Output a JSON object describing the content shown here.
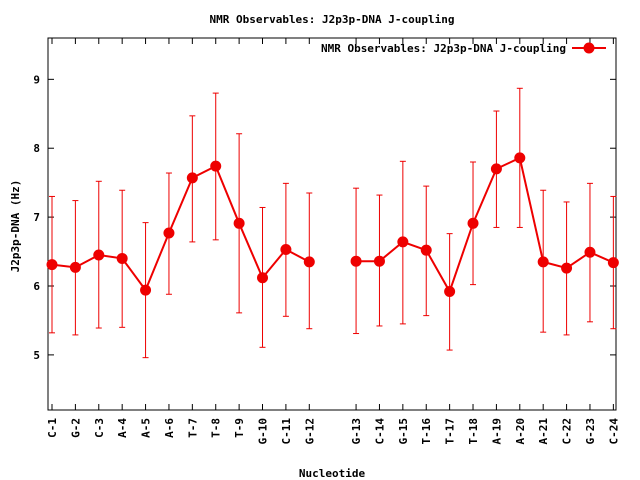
{
  "chart_data": {
    "type": "line",
    "title": "NMR Observables: J2p3p-DNA J-coupling",
    "xlabel": "Nucleotide",
    "ylabel": "J2p3p-DNA (Hz)",
    "ylim": [
      4.2,
      9.6
    ],
    "yticks": [
      5,
      6,
      7,
      8,
      9
    ],
    "grid": false,
    "legend_position": "top-right",
    "colors": {
      "series": "#ee0000",
      "axis": "#000000"
    },
    "series": [
      {
        "name": "NMR Observables: J2p3p-DNA J-coupling",
        "segments": [
          {
            "categories": [
              "C-1",
              "G-2",
              "C-3",
              "A-4",
              "A-5",
              "A-6",
              "T-7",
              "T-8",
              "T-9",
              "G-10",
              "C-11",
              "G-12"
            ],
            "values": [
              6.31,
              6.27,
              6.45,
              6.4,
              5.94,
              6.77,
              7.57,
              7.74,
              6.91,
              6.12,
              6.53,
              6.35
            ],
            "err_low": [
              5.32,
              5.29,
              5.39,
              5.4,
              4.96,
              5.88,
              6.64,
              6.67,
              5.61,
              5.11,
              5.56,
              5.38
            ],
            "err_high": [
              7.3,
              7.24,
              7.52,
              7.39,
              6.92,
              7.64,
              8.47,
              8.8,
              8.21,
              7.14,
              7.49,
              7.35
            ]
          },
          {
            "categories": [
              "G-13",
              "C-14",
              "G-15",
              "T-16",
              "T-17",
              "T-18",
              "A-19",
              "A-20",
              "A-21",
              "C-22",
              "G-23",
              "C-24"
            ],
            "values": [
              6.36,
              6.36,
              6.64,
              6.52,
              5.92,
              6.91,
              7.7,
              7.86,
              6.35,
              6.26,
              6.49,
              6.34
            ],
            "err_low": [
              5.31,
              5.42,
              5.45,
              5.57,
              5.07,
              6.02,
              6.85,
              6.85,
              5.33,
              5.29,
              5.48,
              5.38
            ],
            "err_high": [
              7.42,
              7.32,
              7.81,
              7.45,
              6.76,
              7.8,
              8.54,
              8.87,
              7.39,
              7.22,
              7.49,
              7.3
            ]
          }
        ]
      }
    ]
  }
}
